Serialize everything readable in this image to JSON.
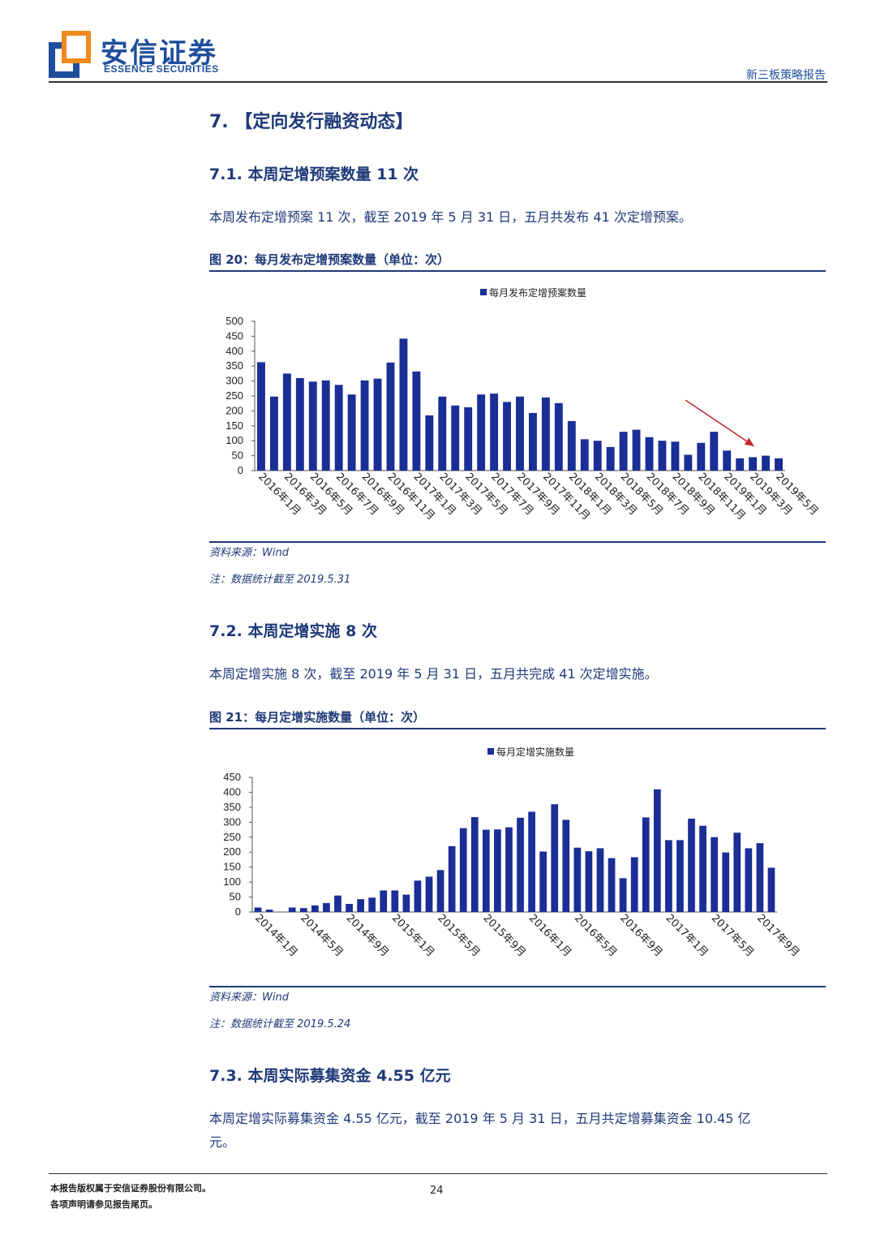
{
  "header": {
    "logo_cn": "安信证券",
    "logo_en": "ESSENCE SECURITIES",
    "report_type": "新三板策略报告"
  },
  "section": {
    "title": "7. 【定向发行融资动态】"
  },
  "s71": {
    "heading": "7.1. 本周定增预案数量 11 次",
    "text": "本周发布定增预案 11 次，截至 2019 年 5 月 31 日，五月共发布 41 次定增预案。",
    "figure_title": "图 20：每月发布定增预案数量（单位：次）",
    "source": "资料来源：Wind",
    "note": "注：数据统计截至 2019.5.31"
  },
  "s72": {
    "heading": "7.2. 本周定增实施 8 次",
    "text": "本周定增实施 8 次，截至 2019 年 5 月 31 日，五月共完成 41 次定增实施。",
    "figure_title": "图 21：每月定增实施数量（单位：次）",
    "source": "资料来源：Wind",
    "note": "注：数据统计截至 2019.5.24"
  },
  "s73": {
    "heading": "7.3. 本周实际募集资金 4.55 亿元",
    "text_line1": "本周定增实际募集资金 4.55 亿元，截至 2019 年 5 月 31 日，五月共定增募集资金 10.45 亿",
    "text_line2": "元。"
  },
  "footer": {
    "line1": "本报告版权属于安信证券股份有限公司。",
    "line2": "各项声明请参见报告尾页。",
    "page": "24"
  },
  "colors": {
    "bar": "#1a2e96",
    "text": "#1f3a78",
    "arrow": "#c0282d"
  },
  "chart_data": [
    {
      "type": "bar",
      "legend": "每月发布定增预案数量",
      "ylim": [
        0,
        500
      ],
      "yticks": [
        0,
        50,
        100,
        150,
        200,
        250,
        300,
        350,
        400,
        450,
        500
      ],
      "xtick_labels": [
        "2016年1月",
        "2016年3月",
        "2016年5月",
        "2016年7月",
        "2016年9月",
        "2016年11月",
        "2017年1月",
        "2017年3月",
        "2017年5月",
        "2017年7月",
        "2017年9月",
        "2017年11月",
        "2018年1月",
        "2018年3月",
        "2018年5月",
        "2018年7月",
        "2018年9月",
        "2018年11月",
        "2019年1月",
        "2019年3月",
        "2019年5月"
      ],
      "values": [
        363,
        248,
        325,
        310,
        298,
        302,
        287,
        255,
        302,
        308,
        362,
        442,
        332,
        185,
        248,
        218,
        212,
        255,
        258,
        230,
        248,
        193,
        245,
        226,
        166,
        105,
        100,
        79,
        130,
        137,
        112,
        100,
        97,
        53,
        93,
        130,
        67,
        41,
        45,
        50,
        41
      ],
      "annotation": "downward-arrow"
    },
    {
      "type": "bar",
      "legend": "每月定增实施数量",
      "ylim": [
        0,
        450
      ],
      "yticks": [
        0,
        50,
        100,
        150,
        200,
        250,
        300,
        350,
        400,
        450
      ],
      "xtick_labels": [
        "2014年1月",
        "2014年5月",
        "2014年9月",
        "2015年1月",
        "2015年5月",
        "2015年9月",
        "2016年1月",
        "2016年5月",
        "2016年9月",
        "2017年1月",
        "2017年5月",
        "2017年9月"
      ],
      "values": [
        15,
        8,
        0,
        15,
        13,
        22,
        30,
        55,
        27,
        43,
        48,
        72,
        72,
        58,
        105,
        118,
        140,
        220,
        280,
        317,
        275,
        276,
        283,
        315,
        335,
        202,
        360,
        308,
        215,
        203,
        213,
        180,
        113,
        183,
        316,
        410,
        240,
        240,
        312,
        288,
        250,
        199,
        265,
        213,
        230,
        148
      ]
    }
  ]
}
